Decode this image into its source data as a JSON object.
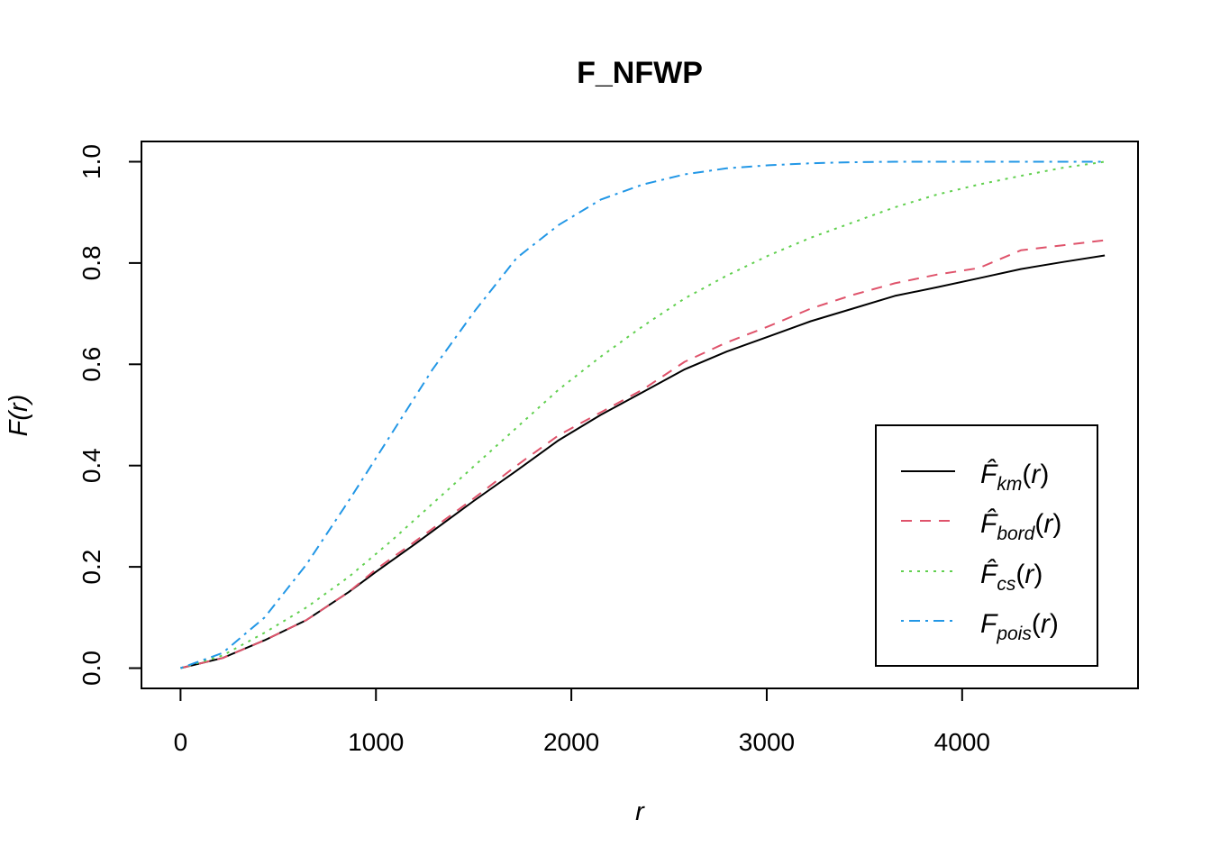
{
  "chart_data": {
    "type": "line",
    "title": "F_NFWP",
    "xlabel": "r",
    "ylabel": "F(r)",
    "xlim": [
      -200,
      4900
    ],
    "ylim": [
      -0.04,
      1.04
    ],
    "x_ticks": [
      0,
      1000,
      2000,
      3000,
      4000
    ],
    "x_tick_labels": [
      "0",
      "1000",
      "2000",
      "3000",
      "4000"
    ],
    "y_ticks": [
      0.0,
      0.2,
      0.4,
      0.6,
      0.8,
      1.0
    ],
    "y_tick_labels": [
      "0.0",
      "0.2",
      "0.4",
      "0.6",
      "0.8",
      "1.0"
    ],
    "grid": false,
    "legend_position": "bottom-right",
    "series": [
      {
        "name": "km",
        "legend_label": {
          "main": "F̂",
          "sub": "km",
          "arg": "r"
        },
        "color": "#000000",
        "dash": "none",
        "points": [
          [
            0,
            0.0
          ],
          [
            215,
            0.02
          ],
          [
            430,
            0.055
          ],
          [
            645,
            0.095
          ],
          [
            860,
            0.15
          ],
          [
            1000,
            0.19
          ],
          [
            1200,
            0.245
          ],
          [
            1500,
            0.33
          ],
          [
            1720,
            0.39
          ],
          [
            1935,
            0.45
          ],
          [
            2150,
            0.5
          ],
          [
            2365,
            0.545
          ],
          [
            2580,
            0.59
          ],
          [
            2795,
            0.625
          ],
          [
            3010,
            0.655
          ],
          [
            3225,
            0.685
          ],
          [
            3440,
            0.71
          ],
          [
            3655,
            0.735
          ],
          [
            3870,
            0.752
          ],
          [
            4085,
            0.77
          ],
          [
            4300,
            0.788
          ],
          [
            4515,
            0.802
          ],
          [
            4730,
            0.815
          ]
        ]
      },
      {
        "name": "bord",
        "legend_label": {
          "main": "F̂",
          "sub": "bord",
          "arg": "r"
        },
        "color": "#DF536B",
        "dash": "12,9",
        "points": [
          [
            0,
            0.0
          ],
          [
            215,
            0.02
          ],
          [
            430,
            0.055
          ],
          [
            645,
            0.095
          ],
          [
            860,
            0.15
          ],
          [
            1000,
            0.195
          ],
          [
            1200,
            0.25
          ],
          [
            1500,
            0.335
          ],
          [
            1720,
            0.4
          ],
          [
            1935,
            0.46
          ],
          [
            2150,
            0.505
          ],
          [
            2365,
            0.55
          ],
          [
            2580,
            0.605
          ],
          [
            2795,
            0.643
          ],
          [
            3010,
            0.675
          ],
          [
            3225,
            0.71
          ],
          [
            3440,
            0.737
          ],
          [
            3655,
            0.76
          ],
          [
            3870,
            0.777
          ],
          [
            4085,
            0.79
          ],
          [
            4300,
            0.825
          ],
          [
            4515,
            0.835
          ],
          [
            4730,
            0.845
          ]
        ]
      },
      {
        "name": "cs",
        "legend_label": {
          "main": "F̂",
          "sub": "cs",
          "arg": "r"
        },
        "color": "#61D04F",
        "dash": "3,6",
        "points": [
          [
            0,
            0.0
          ],
          [
            215,
            0.025
          ],
          [
            430,
            0.07
          ],
          [
            645,
            0.12
          ],
          [
            860,
            0.18
          ],
          [
            1075,
            0.25
          ],
          [
            1290,
            0.325
          ],
          [
            1505,
            0.4
          ],
          [
            1720,
            0.475
          ],
          [
            1935,
            0.55
          ],
          [
            2150,
            0.615
          ],
          [
            2365,
            0.675
          ],
          [
            2580,
            0.73
          ],
          [
            2795,
            0.775
          ],
          [
            3010,
            0.815
          ],
          [
            3225,
            0.85
          ],
          [
            3440,
            0.88
          ],
          [
            3655,
            0.91
          ],
          [
            3870,
            0.935
          ],
          [
            4085,
            0.955
          ],
          [
            4300,
            0.972
          ],
          [
            4515,
            0.988
          ],
          [
            4730,
            1.0
          ]
        ]
      },
      {
        "name": "pois",
        "legend_label": {
          "main": "F",
          "sub": "pois",
          "arg": "r"
        },
        "color": "#2297E6",
        "dash": "3,6,12,6",
        "points": [
          [
            0,
            0.0
          ],
          [
            215,
            0.03
          ],
          [
            430,
            0.1
          ],
          [
            645,
            0.205
          ],
          [
            860,
            0.33
          ],
          [
            1075,
            0.46
          ],
          [
            1290,
            0.59
          ],
          [
            1505,
            0.705
          ],
          [
            1720,
            0.81
          ],
          [
            1935,
            0.875
          ],
          [
            2150,
            0.925
          ],
          [
            2365,
            0.955
          ],
          [
            2580,
            0.975
          ],
          [
            2795,
            0.987
          ],
          [
            3010,
            0.993
          ],
          [
            3225,
            0.997
          ],
          [
            3440,
            0.999
          ],
          [
            3655,
            1.0
          ],
          [
            3870,
            1.0
          ],
          [
            4085,
            1.0
          ],
          [
            4300,
            1.0
          ],
          [
            4515,
            1.0
          ],
          [
            4730,
            1.0
          ]
        ]
      }
    ]
  }
}
